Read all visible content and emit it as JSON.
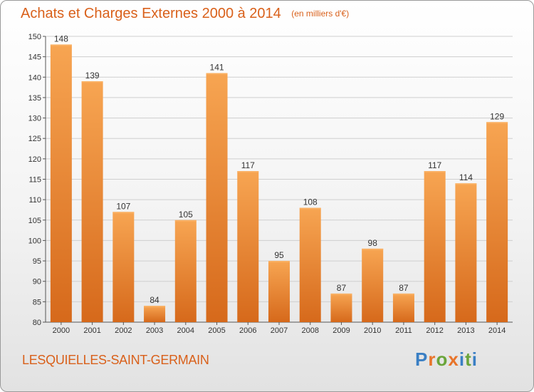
{
  "title": "Achats et Charges Externes 2000 à 2014",
  "unit_label": "(en milliers d'€)",
  "commune": "LESQUIELLES-SAINT-GERMAIN",
  "logo": {
    "text": "Proxiti",
    "letters": [
      "P",
      "r",
      "o",
      "x",
      "i",
      "t",
      "i"
    ],
    "colors": [
      "#3a7fc4",
      "#e8742a",
      "#6aa53a",
      "#e8742a",
      "#3a7fc4",
      "#6aa53a",
      "#3a7fc4"
    ]
  },
  "colors": {
    "accent": "#d9601a",
    "bar_top": "#f7a552",
    "bar_bottom": "#d6691b",
    "grid": "#cfcfcf"
  },
  "chart_data": {
    "type": "bar",
    "title": "Achats et Charges Externes 2000 à 2014",
    "subtitle": "(en milliers d'€)",
    "xlabel": "",
    "ylabel": "",
    "categories": [
      "2000",
      "2001",
      "2002",
      "2003",
      "2004",
      "2005",
      "2006",
      "2007",
      "2008",
      "2009",
      "2010",
      "2011",
      "2012",
      "2013",
      "2014"
    ],
    "values": [
      148,
      139,
      107,
      84,
      105,
      141,
      117,
      95,
      108,
      87,
      98,
      87,
      117,
      114,
      129
    ],
    "ylim": [
      80,
      150
    ],
    "yticks": [
      80,
      85,
      90,
      95,
      100,
      105,
      110,
      115,
      120,
      125,
      130,
      135,
      140,
      145,
      150
    ],
    "grid": true,
    "data_labels": true
  }
}
